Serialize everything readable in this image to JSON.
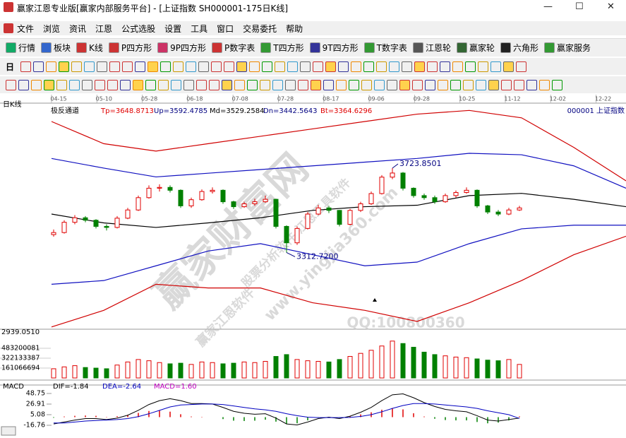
{
  "window": {
    "title": "赢家江恩专业版[赢家内部服务平台] - [上证指数  SH000001-175日K线]"
  },
  "menu": [
    "文件",
    "浏览",
    "资讯",
    "江恩",
    "公式选股",
    "设置",
    "工具",
    "窗口",
    "交易委托",
    "帮助"
  ],
  "toolbar": [
    "行情",
    "板块",
    "K线",
    "P四方形",
    "9P四方形",
    "P数字表",
    "T四方形",
    "9T四方形",
    "T数字表",
    "江恩轮",
    "赢家轮",
    "六角形",
    "赢家服务"
  ],
  "toolbar2_label": "日",
  "watermark": [
    "赢家财富网",
    "股票分析软件 江恩工具软件",
    "www.yingjia360.com",
    "赢家江恩软件",
    "QQ:100800360"
  ],
  "chart_data": [
    {
      "type": "candlestick",
      "title": "日K线",
      "indicator": "极反通道",
      "symbol": "000001 上证指数",
      "params": [
        {
          "label": "Tp=3648.8713",
          "color": "#e00000"
        },
        {
          "label": "Up=3592.4785",
          "color": "#000080"
        },
        {
          "label": "Md=3529.2584",
          "color": "#000000"
        },
        {
          "label": "Dn=3442.5643",
          "color": "#000080"
        },
        {
          "label": "Bt=3364.6296",
          "color": "#e00000"
        }
      ],
      "dates": [
        "04-15",
        "05-10",
        "05-28",
        "06-18",
        "07-08",
        "07-28",
        "08-17",
        "09-06",
        "09-28",
        "10-25",
        "11-12",
        "12-02",
        "12-22"
      ],
      "open": [
        3400,
        3410,
        3460,
        3482,
        3470,
        3440,
        3435,
        3480,
        3520,
        3580,
        3626,
        3630,
        3616,
        3540,
        3570,
        3610,
        3616,
        3560,
        3536,
        3550,
        3560,
        3572,
        3440,
        3360,
        3430,
        3500,
        3530,
        3518,
        3450,
        3518,
        3550,
        3600,
        3680,
        3700,
        3626,
        3590,
        3580,
        3560,
        3590,
        3605,
        3616,
        3540,
        3510,
        3500,
        3520
      ],
      "close": [
        3410,
        3460,
        3482,
        3470,
        3440,
        3435,
        3480,
        3520,
        3580,
        3626,
        3630,
        3616,
        3540,
        3570,
        3610,
        3616,
        3560,
        3536,
        3550,
        3560,
        3572,
        3440,
        3360,
        3430,
        3500,
        3530,
        3518,
        3450,
        3518,
        3550,
        3600,
        3680,
        3700,
        3626,
        3590,
        3580,
        3560,
        3590,
        3605,
        3616,
        3540,
        3510,
        3500,
        3520,
        3530
      ],
      "high": [
        3425,
        3470,
        3495,
        3490,
        3475,
        3450,
        3490,
        3530,
        3590,
        3640,
        3645,
        3640,
        3620,
        3580,
        3620,
        3630,
        3620,
        3565,
        3560,
        3575,
        3590,
        3575,
        3445,
        3440,
        3510,
        3545,
        3540,
        3520,
        3525,
        3560,
        3610,
        3690,
        3723.8501,
        3705,
        3630,
        3600,
        3590,
        3600,
        3615,
        3630,
        3620,
        3545,
        3520,
        3530,
        3540
      ],
      "low": [
        3390,
        3405,
        3450,
        3460,
        3430,
        3420,
        3430,
        3475,
        3515,
        3575,
        3610,
        3605,
        3530,
        3530,
        3565,
        3600,
        3550,
        3525,
        3530,
        3540,
        3555,
        3430,
        3312.72,
        3350,
        3425,
        3495,
        3505,
        3440,
        3445,
        3510,
        3545,
        3595,
        3670,
        3615,
        3580,
        3570,
        3550,
        3555,
        3580,
        3600,
        3530,
        3500,
        3490,
        3495,
        3515
      ],
      "up_color": "#e00000",
      "down_color": "#008000",
      "channels": [
        {
          "color": "#d00000",
          "values": [
            3951,
            3843,
            3807,
            3843,
            3879,
            3915,
            3951,
            3987,
            4005,
            3969,
            3825,
            3662
          ]
        },
        {
          "color": "#1010c0",
          "values": [
            3771,
            3724,
            3681,
            3699,
            3717,
            3735,
            3753,
            3771,
            3796,
            3789,
            3735,
            3626
          ]
        },
        {
          "color": "#000000",
          "values": [
            3500,
            3457,
            3435,
            3457,
            3482,
            3518,
            3536,
            3543,
            3590,
            3601,
            3572,
            3536
          ]
        },
        {
          "color": "#1010c0",
          "values": [
            3158,
            3176,
            3248,
            3320,
            3356,
            3302,
            3248,
            3266,
            3356,
            3428,
            3446,
            3446
          ]
        },
        {
          "color": "#d00000",
          "values": [
            2950,
            3031,
            3158,
            3140,
            3140,
            3068,
            3031,
            2977,
            3068,
            3176,
            3302,
            3392
          ]
        }
      ],
      "annotations": [
        {
          "value": 3723.8501,
          "label": "3723.8501"
        },
        {
          "value": 3312.72,
          "label": "3312.7200"
        }
      ],
      "ylim": [
        2939.051,
        4033.6
      ],
      "yticks": [
        {
          "value": 2939.051,
          "label": "2939.0510"
        }
      ]
    },
    {
      "type": "bar",
      "values": [
        150000000,
        180000000,
        200000000,
        170000000,
        160000000,
        150000000,
        210000000,
        260000000,
        300000000,
        280000000,
        250000000,
        230000000,
        240000000,
        220000000,
        260000000,
        250000000,
        230000000,
        240000000,
        260000000,
        250000000,
        270000000,
        350000000,
        380000000,
        300000000,
        280000000,
        270000000,
        260000000,
        300000000,
        350000000,
        400000000,
        450000000,
        520000000,
        600000000,
        560000000,
        500000000,
        420000000,
        380000000,
        360000000,
        340000000,
        330000000,
        310000000,
        290000000,
        280000000,
        300000000,
        220000000
      ],
      "ylim": [
        0,
        747000000
      ],
      "yticks": [
        483200081,
        322133387,
        161066694
      ]
    },
    {
      "type": "macd",
      "title": "MACD",
      "params": [
        {
          "label": "DIF=-1.84",
          "color": "#000000"
        },
        {
          "label": "DEA=-2.64",
          "color": "#0000c0"
        },
        {
          "label": "MACD=1.60",
          "color": "#c000c0"
        }
      ],
      "series": [
        {
          "color": "#000000",
          "values": [
            -14,
            -10,
            -6,
            -3,
            -3,
            -5,
            -2,
            4,
            14,
            26,
            34,
            38,
            34,
            28,
            28,
            27,
            20,
            12,
            8,
            6,
            7,
            -2,
            -14,
            -16,
            -10,
            -3,
            0,
            -3,
            2,
            10,
            20,
            34,
            46,
            48,
            40,
            30,
            22,
            16,
            13,
            11,
            3,
            -6,
            -8,
            -5,
            -1.84
          ]
        },
        {
          "color": "#0000c0",
          "values": [
            -12,
            -12,
            -10,
            -8,
            -7,
            -6,
            -5,
            -3,
            1,
            7,
            14,
            21,
            25,
            26,
            27,
            27,
            26,
            23,
            20,
            17,
            15,
            12,
            7,
            3,
            0,
            -1,
            -1,
            -1,
            -0.5,
            1.5,
            5,
            11,
            18,
            24,
            28,
            28,
            27,
            25,
            23,
            21,
            18,
            13,
            9,
            5,
            -2.64
          ]
        }
      ],
      "histogram": {
        "up_color": "#e00000",
        "down_color": "#008000",
        "values": [
          -1.3,
          1.3,
          2.7,
          3.3,
          2.7,
          0.7,
          2,
          4.7,
          8.7,
          12.7,
          13.3,
          11.3,
          6,
          1.3,
          0.7,
          0,
          -4,
          -7.3,
          -8,
          -7.3,
          -5.3,
          -9.3,
          -14,
          -12.7,
          -6.7,
          -1.3,
          0.7,
          -1.3,
          1.7,
          5.7,
          10,
          15.3,
          18.7,
          16,
          8,
          1.3,
          -3.3,
          -6,
          -6.7,
          -6.7,
          -10,
          -12.7,
          -11.3,
          -6.7,
          1.6
        ]
      },
      "ylim": [
        -35.7,
        56
      ],
      "yticks": [
        48.75,
        26.91,
        5.08,
        -16.76
      ]
    }
  ]
}
